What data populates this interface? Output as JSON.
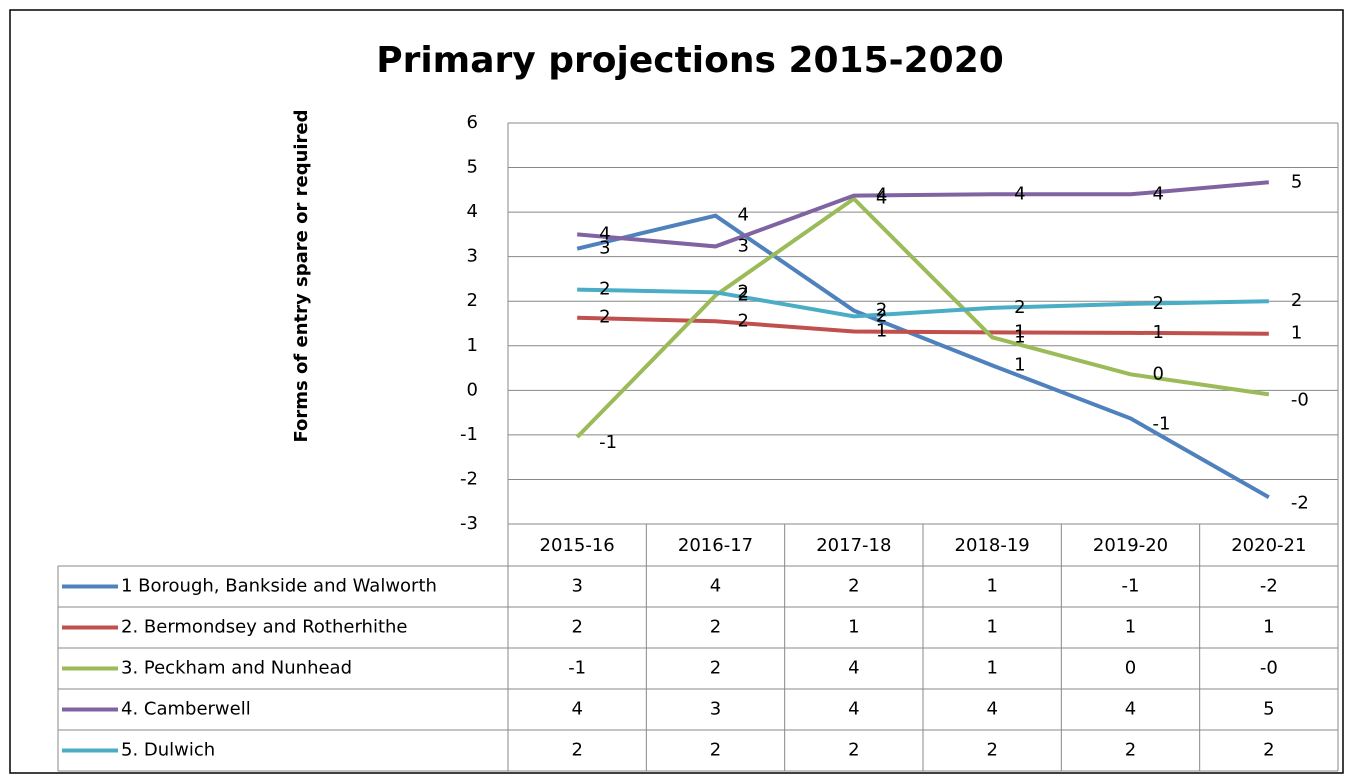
{
  "chart_data": {
    "type": "line",
    "title": "Primary projections 2015-2020",
    "y_label": "Forms of entry spare or required",
    "categories": [
      "2015-16",
      "2016-17",
      "2017-18",
      "2018-19",
      "2019-20",
      "2020-21"
    ],
    "ylim": [
      -3,
      6
    ],
    "yticks": [
      -3,
      -2,
      -1,
      0,
      1,
      2,
      3,
      4,
      5,
      6
    ],
    "grid": true,
    "data_table": true,
    "series": [
      {
        "name": "1 Borough, Bankside and Walworth",
        "color": "#4f81bd",
        "values": [
          3.18,
          3.92,
          1.79,
          0.56,
          -0.63,
          -2.4
        ],
        "value_labels": [
          "3",
          "4",
          "2",
          "1",
          "-1",
          "-2"
        ]
      },
      {
        "name": "2. Bermondsey and Rotherhithe",
        "color": "#c0504d",
        "values": [
          1.63,
          1.55,
          1.32,
          1.3,
          1.29,
          1.27
        ],
        "value_labels": [
          "2",
          "2",
          "1",
          "1",
          "1",
          "1"
        ]
      },
      {
        "name": "3. Peckham and Nunhead",
        "color": "#9bbb59",
        "values": [
          -1.05,
          2.13,
          4.3,
          1.19,
          0.36,
          -0.09
        ],
        "value_labels": [
          "-1",
          "2",
          "4",
          "1",
          "0",
          "-0"
        ]
      },
      {
        "name": "4. Camberwell",
        "color": "#8064a2",
        "values": [
          3.5,
          3.23,
          4.37,
          4.4,
          4.4,
          4.67
        ],
        "value_labels": [
          "4",
          "3",
          "4",
          "4",
          "4",
          "5"
        ]
      },
      {
        "name": "5. Dulwich",
        "color": "#4bacc6",
        "values": [
          2.26,
          2.2,
          1.66,
          1.85,
          1.94,
          2.0
        ],
        "value_labels": [
          "2",
          "2",
          "2",
          "2",
          "2",
          "2"
        ]
      }
    ]
  }
}
